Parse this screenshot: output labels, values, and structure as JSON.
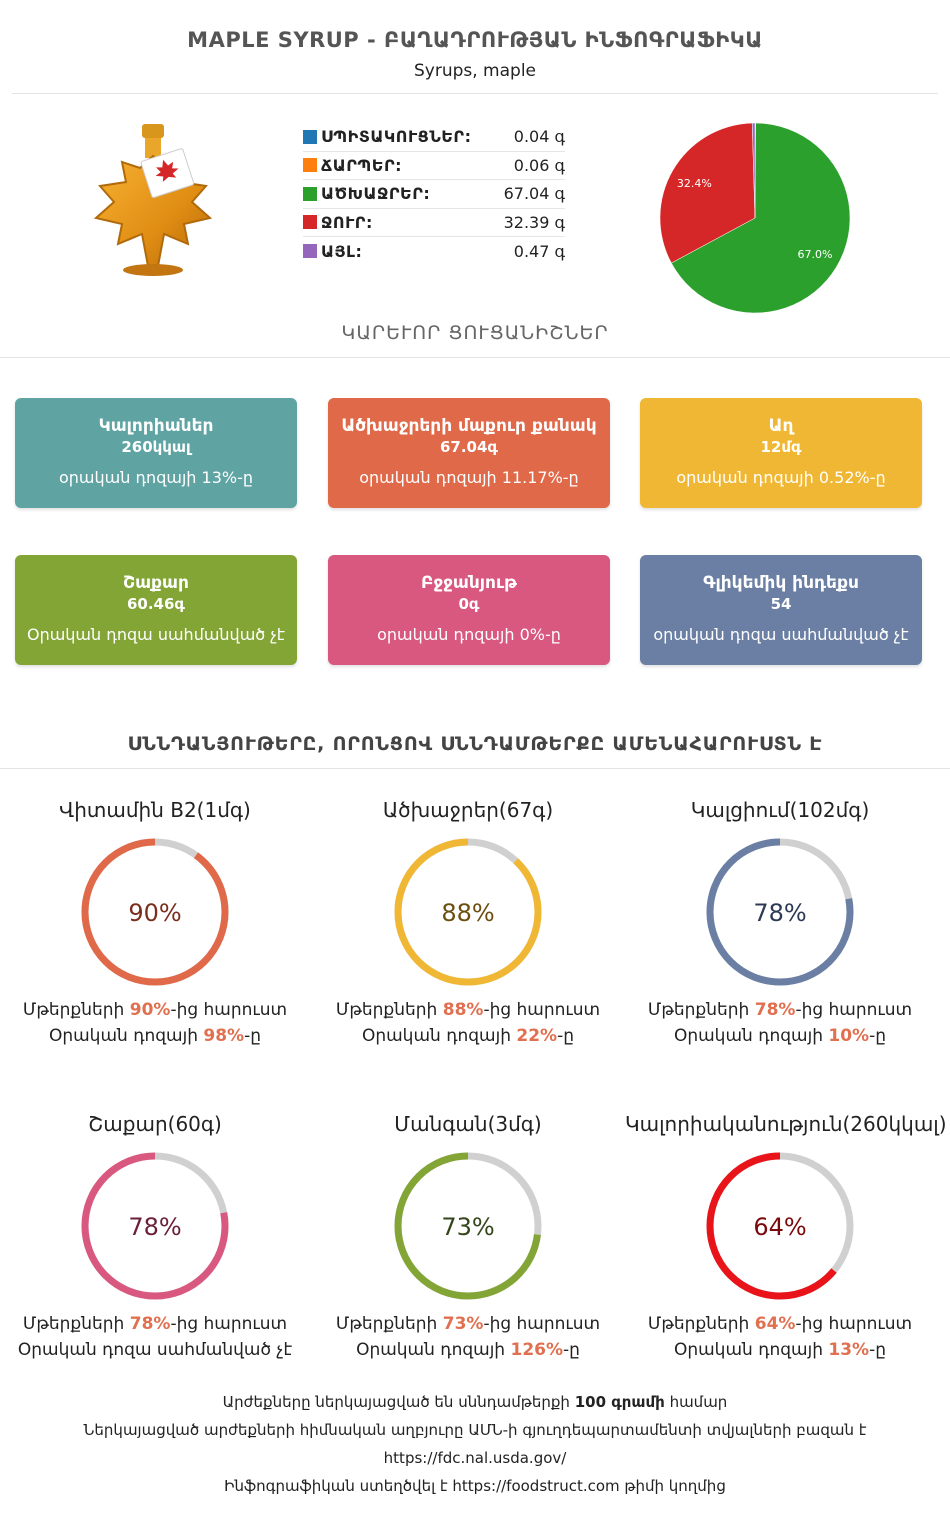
{
  "header": {
    "title": "MAPLE SYRUP - ԲԱՂԱԴՐՈՒԹՅԱՆ ԻՆՖՈԳՐԱՖԻԿԱ",
    "subtitle": "Syrups, maple"
  },
  "macros": [
    {
      "name": "ՍՊԻՏԱԿՈՒՑՆԵՐ:",
      "value": "0.04 գ",
      "color": "#1f77b4"
    },
    {
      "name": "ՃԱՐՊԵՐ:",
      "value": "0.06 գ",
      "color": "#ff7f0e"
    },
    {
      "name": "ԱԾԽԱՋՐԵՐ:",
      "value": "67.04 գ",
      "color": "#2ca02c"
    },
    {
      "name": "ՋՈՒՐ:",
      "value": "32.39 գ",
      "color": "#d62728"
    },
    {
      "name": "ԱՅԼ:",
      "value": "0.47 գ",
      "color": "#9467bd"
    }
  ],
  "chart_data": {
    "type": "pie",
    "slices": [
      {
        "label": "ՍՊԻՏԱԿՈՒՑՆԵՐ",
        "value": 0.04,
        "color": "#1f77b4"
      },
      {
        "label": "ՃԱՐՊԵՐ",
        "value": 0.06,
        "color": "#ff7f0e"
      },
      {
        "label": "ԱԾԽԱՋՐԵՐ",
        "value": 67.04,
        "color": "#2ca02c"
      },
      {
        "label": "ՋՈՒՐ",
        "value": 32.39,
        "color": "#d62728"
      },
      {
        "label": "ԱՅԼ",
        "value": 0.47,
        "color": "#9467bd"
      }
    ],
    "data_labels": [
      "67.0%",
      "32.4%"
    ]
  },
  "key_section_title": "ԿԱՐԵՒՈՐ ՑՈՒՑԱՆԻՇՆԵՐ",
  "cards": [
    {
      "title": "Կալորիաներ",
      "value": "260կկալ",
      "note": "օրական դոզայի 13%-ը",
      "color": "#5fa3a3"
    },
    {
      "title": "Ածխաջրերի մաքուր քանակ",
      "value": "67.04գ",
      "note": "օրական դոզայի 11.17%-ը",
      "color": "#e0694a"
    },
    {
      "title": "Աղ",
      "value": "12մգ",
      "note": "օրական դոզայի 0.52%-ը",
      "color": "#f0b734"
    },
    {
      "title": "Շաքար",
      "value": "60.46գ",
      "note": "Օրական դոզա սահմանված չէ",
      "color": "#82a536"
    },
    {
      "title": "Բջջանյութ",
      "value": "0գ",
      "note": "օրական դոզայի 0%-ը",
      "color": "#d9587f"
    },
    {
      "title": "Գլիկեմիկ ինդեքս",
      "value": "54",
      "note": "օրական դոզա սահմանված չէ",
      "color": "#6a7fa3"
    }
  ],
  "nutrients_section_title": "ՍՆՆԴԱՆՅՈՒԹԵՐԸ, ՈՐՈՆՑՈՎ ՍՆՆԴԱՄԹԵՐՔԸ ԱՄԵՆԱՀԱՐՈՒՍՏՆ Է",
  "nutrients": [
    {
      "title": "Վիտամին B2(1մգ)",
      "percent": 90,
      "percent_label": "90%",
      "ring_color": "#e0694a",
      "text_color": "#7a2e1c",
      "l1_pre": "Մթերքների ",
      "l1_hl": "90%",
      "l1_post": "-ից հարուստ",
      "l2_pre": "Օրական դոզայի ",
      "l2_hl": "98%",
      "l2_post": "-ը"
    },
    {
      "title": "Ածխաջրեր(67գ)",
      "percent": 88,
      "percent_label": "88%",
      "ring_color": "#f0b734",
      "text_color": "#6b4e10",
      "l1_pre": "Մթերքների ",
      "l1_hl": "88%",
      "l1_post": "-ից հարուստ",
      "l2_pre": "Օրական դոզայի ",
      "l2_hl": "22%",
      "l2_post": "-ը"
    },
    {
      "title": "Կալցիում(102մգ)",
      "percent": 78,
      "percent_label": "78%",
      "ring_color": "#6a7fa3",
      "text_color": "#2c3a55",
      "l1_pre": "Մթերքների ",
      "l1_hl": "78%",
      "l1_post": "-ից հարուստ",
      "l2_pre": "Օրական դոզայի ",
      "l2_hl": "10%",
      "l2_post": "-ը"
    },
    {
      "title": "Շաքար(60գ)",
      "percent": 78,
      "percent_label": "78%",
      "ring_color": "#d9587f",
      "text_color": "#6a1f38",
      "l1_pre": "Մթերքների ",
      "l1_hl": "78%",
      "l1_post": "-ից հարուստ",
      "l2_pre": "Օրական դոզա սահմանված չէ",
      "l2_hl": "",
      "l2_post": ""
    },
    {
      "title": "Մանգան(3մգ)",
      "percent": 73,
      "percent_label": "73%",
      "ring_color": "#82a536",
      "text_color": "#33461a",
      "l1_pre": "Մթերքների ",
      "l1_hl": "73%",
      "l1_post": "-ից հարուստ",
      "l2_pre": "Օրական դոզայի ",
      "l2_hl": "126%",
      "l2_post": "-ը"
    },
    {
      "title": "Կալորիականություն(260կկալ)",
      "percent": 64,
      "percent_label": "64%",
      "ring_color": "#e8141a",
      "text_color": "#7a0a0d",
      "l1_pre": "Մթերքների ",
      "l1_hl": "64%",
      "l1_post": "-ից հարուստ",
      "l2_pre": "Օրական դոզայի ",
      "l2_hl": "13%",
      "l2_post": "-ը"
    }
  ],
  "footer": {
    "line1_pre": "Արժեքները ներկայացված են սննդամթերքի ",
    "line1_bold": "100 գրամի",
    "line1_post": " համար",
    "line2": "Ներկայացված արժեքների հիմնական աղբյուրը ԱՄՆ-ի գյուղդեպարտամենտի տվյալների բազան է",
    "line3": "https://fdc.nal.usda.gov/",
    "line4_pre": "Ինֆոգրաֆիկան ստեղծվել է ",
    "line4_link": "https://foodstruct.com",
    "line4_post": " թիմի կողմից"
  }
}
